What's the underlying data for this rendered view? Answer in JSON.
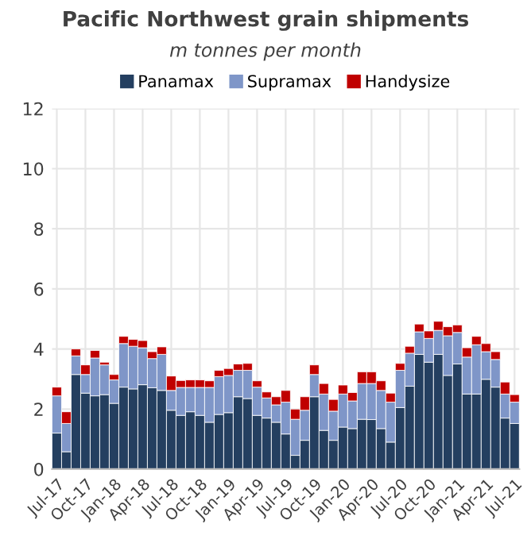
{
  "chart_data": {
    "type": "bar",
    "stacked": true,
    "title": "Pacific Northwest grain shipments",
    "subtitle": "m tonnes per month",
    "categories": [
      "Jul-17",
      null,
      null,
      "Oct-17",
      null,
      null,
      "Jan-18",
      null,
      null,
      "Apr-18",
      null,
      null,
      "Jul-18",
      null,
      null,
      "Oct-18",
      null,
      null,
      "Jan-19",
      null,
      null,
      "Apr-19",
      null,
      null,
      "Jul-19",
      null,
      null,
      "Oct-19",
      null,
      null,
      "Jan-20",
      null,
      null,
      "Apr-20",
      null,
      null,
      "Jul-20",
      null,
      null,
      "Oct-20",
      null,
      null,
      "Jan-21",
      null,
      null,
      "Apr-21",
      null,
      null,
      "Jul-21"
    ],
    "series": [
      {
        "name": "Panamax",
        "color": "#243f60",
        "values": [
          1.2,
          0.58,
          3.15,
          2.53,
          2.44,
          2.48,
          2.19,
          2.73,
          2.67,
          2.81,
          2.71,
          2.62,
          1.96,
          1.79,
          1.91,
          1.79,
          1.56,
          1.82,
          1.88,
          2.41,
          2.35,
          1.79,
          1.7,
          1.56,
          1.17,
          0.46,
          0.96,
          2.41,
          1.29,
          0.96,
          1.4,
          1.35,
          1.66,
          1.65,
          1.35,
          0.9,
          2.05,
          2.76,
          3.82,
          3.56,
          3.82,
          3.12,
          3.5,
          2.5,
          2.5,
          2.99,
          2.73,
          1.7,
          1.52
        ]
      },
      {
        "name": "Supramax",
        "color": "#7f96c8",
        "values": [
          1.24,
          0.94,
          0.62,
          0.62,
          1.26,
          0.99,
          0.78,
          1.45,
          1.42,
          1.23,
          0.97,
          1.2,
          0.66,
          0.93,
          0.81,
          0.93,
          1.16,
          1.26,
          1.24,
          0.88,
          0.94,
          0.94,
          0.67,
          0.58,
          1.06,
          1.2,
          1.0,
          0.74,
          1.21,
          0.97,
          1.1,
          0.92,
          1.19,
          1.2,
          1.27,
          1.33,
          1.24,
          1.1,
          0.75,
          0.79,
          0.8,
          1.32,
          1.05,
          1.23,
          1.64,
          0.92,
          0.92,
          0.8,
          0.71
        ]
      },
      {
        "name": "Handysize",
        "color": "#c00000",
        "values": [
          0.29,
          0.39,
          0.23,
          0.32,
          0.25,
          0.09,
          0.18,
          0.24,
          0.23,
          0.24,
          0.23,
          0.25,
          0.48,
          0.23,
          0.25,
          0.25,
          0.22,
          0.21,
          0.23,
          0.21,
          0.23,
          0.21,
          0.2,
          0.27,
          0.39,
          0.34,
          0.45,
          0.32,
          0.35,
          0.39,
          0.3,
          0.28,
          0.39,
          0.39,
          0.32,
          0.3,
          0.23,
          0.23,
          0.26,
          0.25,
          0.3,
          0.3,
          0.25,
          0.31,
          0.28,
          0.27,
          0.26,
          0.4,
          0.25
        ]
      }
    ],
    "ylim": [
      0,
      12
    ],
    "yticks": [
      0,
      2,
      4,
      6,
      8,
      10,
      12
    ],
    "grid": true,
    "legend": "top"
  }
}
